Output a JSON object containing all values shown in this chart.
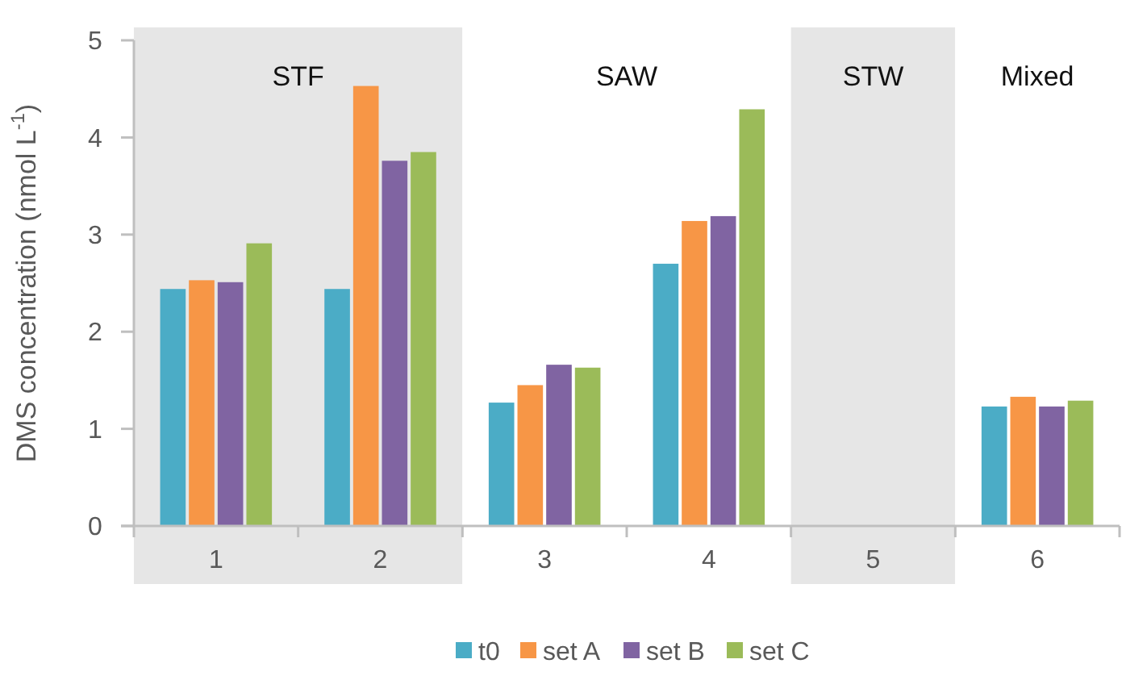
{
  "chart_data": {
    "type": "bar",
    "ylabel": "DMS concentration (nmol L$^{-1}$)",
    "categories": [
      "1",
      "2",
      "3",
      "4",
      "5",
      "6"
    ],
    "series": [
      {
        "name": "t0",
        "color": "#4bacc6",
        "values": [
          2.44,
          2.44,
          1.27,
          2.7,
          null,
          1.23
        ]
      },
      {
        "name": "set A",
        "color": "#f79646",
        "values": [
          2.53,
          4.53,
          1.45,
          3.14,
          null,
          1.33
        ]
      },
      {
        "name": "set B",
        "color": "#8064a2",
        "values": [
          2.51,
          3.76,
          1.66,
          3.19,
          null,
          1.23
        ]
      },
      {
        "name": "set C",
        "color": "#9bbb59",
        "values": [
          2.91,
          3.85,
          1.63,
          4.29,
          null,
          1.29
        ]
      }
    ],
    "ylim": [
      0,
      5
    ],
    "yticks": [
      0,
      1,
      2,
      3,
      4,
      5
    ],
    "grid": false,
    "legend": "bottom",
    "bands": [
      {
        "axis": "x",
        "from": "1",
        "to": "2",
        "label": "STF",
        "color": "#e6e6e6"
      },
      {
        "axis": "x",
        "from": "3",
        "to": "4",
        "label": "SAW",
        "color": "#ffffff"
      },
      {
        "axis": "x",
        "from": "5",
        "to": "5",
        "label": "STW",
        "color": "#e6e6e6"
      },
      {
        "axis": "x",
        "from": "6",
        "to": "6",
        "label": "Mixed",
        "color": "#ffffff"
      }
    ]
  }
}
